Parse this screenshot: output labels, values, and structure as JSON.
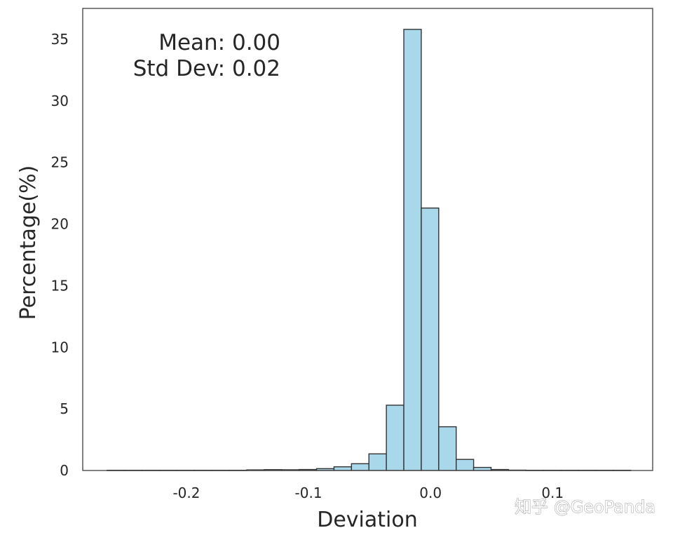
{
  "chart_data": {
    "type": "bar",
    "xlabel": "Deviation",
    "ylabel": "Percentage(%)",
    "xlim": [
      -0.285,
      0.182
    ],
    "ylim": [
      0,
      37.5
    ],
    "xticks": [
      {
        "value": -0.2,
        "label": "-0.2"
      },
      {
        "value": -0.1,
        "label": "-0.1"
      },
      {
        "value": 0.0,
        "label": "0.0"
      },
      {
        "value": 0.1,
        "label": "0.1"
      }
    ],
    "yticks": [
      {
        "value": 0,
        "label": "0"
      },
      {
        "value": 5,
        "label": "5"
      },
      {
        "value": 10,
        "label": "10"
      },
      {
        "value": 15,
        "label": "15"
      },
      {
        "value": 20,
        "label": "20"
      },
      {
        "value": 25,
        "label": "25"
      },
      {
        "value": 30,
        "label": "30"
      },
      {
        "value": 35,
        "label": "35"
      }
    ],
    "bin_edges": [
      -0.265,
      -0.2507,
      -0.2364,
      -0.2221,
      -0.2078,
      -0.1935,
      -0.1792,
      -0.1649,
      -0.1506,
      -0.1363,
      -0.122,
      -0.1077,
      -0.0934,
      -0.0791,
      -0.0648,
      -0.0505,
      -0.0362,
      -0.0219,
      -0.0076,
      0.0067,
      0.021,
      0.0353,
      0.0496,
      0.0639,
      0.0782,
      0.0925,
      0.1068,
      0.1211,
      0.1354,
      0.1497,
      0.164
    ],
    "values": [
      0.02,
      0.02,
      0.02,
      0.02,
      0.02,
      0.02,
      0.02,
      0.02,
      0.05,
      0.07,
      0.06,
      0.08,
      0.15,
      0.3,
      0.55,
      1.35,
      5.3,
      35.8,
      21.3,
      3.55,
      0.9,
      0.25,
      0.08,
      0.03,
      0.02,
      0.02,
      0.02,
      0.02,
      0.02,
      0.02
    ],
    "bar_color": "#a8d8ea",
    "edge_color": "#333333",
    "grid": false,
    "annotations": [
      "Mean: 0.00",
      "Std Dev: 0.02"
    ]
  },
  "watermark": "知乎 @GeoPanda"
}
